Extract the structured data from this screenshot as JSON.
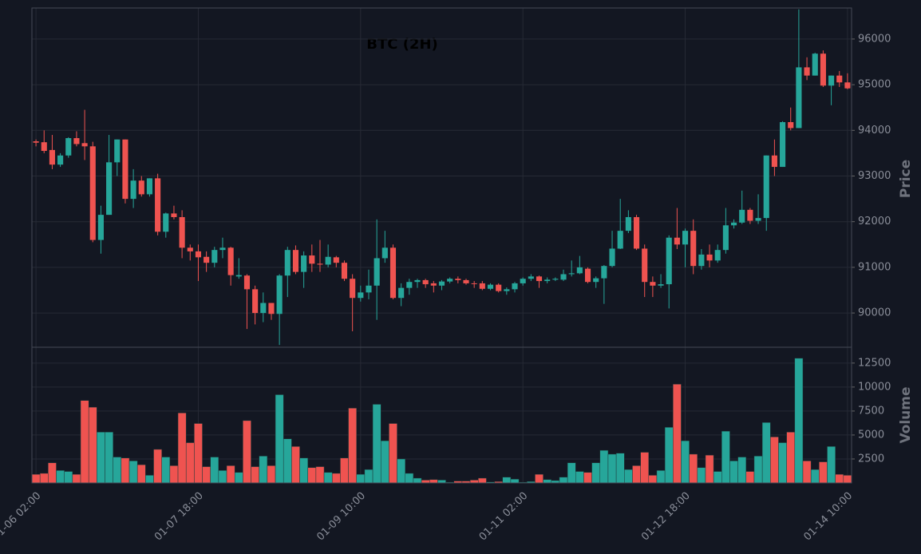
{
  "chart_data": {
    "type": "candlestick",
    "title": "BTC (2H)",
    "x": [
      "01-06 02:00",
      "01-06 04:00",
      "01-06 06:00",
      "01-06 08:00",
      "01-06 10:00",
      "01-06 12:00",
      "01-06 14:00",
      "01-06 16:00",
      "01-06 18:00",
      "01-06 20:00",
      "01-06 22:00",
      "01-07 00:00",
      "01-07 02:00",
      "01-07 04:00",
      "01-07 06:00",
      "01-07 08:00",
      "01-07 10:00",
      "01-07 12:00",
      "01-07 14:00",
      "01-07 16:00",
      "01-07 18:00",
      "01-07 20:00",
      "01-07 22:00",
      "01-08 00:00",
      "01-08 02:00",
      "01-08 04:00",
      "01-08 06:00",
      "01-08 08:00",
      "01-08 10:00",
      "01-08 12:00",
      "01-08 14:00",
      "01-08 16:00",
      "01-08 18:00",
      "01-08 20:00",
      "01-08 22:00",
      "01-09 00:00",
      "01-09 02:00",
      "01-09 04:00",
      "01-09 06:00",
      "01-09 08:00",
      "01-09 10:00",
      "01-09 12:00",
      "01-09 14:00",
      "01-09 16:00",
      "01-09 18:00",
      "01-09 20:00",
      "01-09 22:00",
      "01-10 00:00",
      "01-10 02:00",
      "01-10 04:00",
      "01-10 06:00",
      "01-10 08:00",
      "01-10 10:00",
      "01-10 12:00",
      "01-10 14:00",
      "01-10 16:00",
      "01-10 18:00",
      "01-10 20:00",
      "01-10 22:00",
      "01-11 00:00",
      "01-11 02:00",
      "01-11 04:00",
      "01-11 06:00",
      "01-11 08:00",
      "01-11 10:00",
      "01-11 12:00",
      "01-11 14:00",
      "01-11 16:00",
      "01-11 18:00",
      "01-11 20:00",
      "01-11 22:00",
      "01-12 00:00",
      "01-12 02:00",
      "01-12 04:00",
      "01-12 06:00",
      "01-12 08:00",
      "01-12 10:00",
      "01-12 12:00",
      "01-12 14:00",
      "01-12 16:00",
      "01-12 18:00",
      "01-12 20:00",
      "01-12 22:00",
      "01-13 00:00",
      "01-13 02:00",
      "01-13 04:00",
      "01-13 06:00",
      "01-13 08:00",
      "01-13 10:00",
      "01-13 12:00",
      "01-13 14:00",
      "01-13 16:00",
      "01-13 18:00",
      "01-13 20:00",
      "01-13 22:00",
      "01-14 00:00",
      "01-14 02:00",
      "01-14 04:00",
      "01-14 06:00",
      "01-14 08:00",
      "01-14 10:00"
    ],
    "open": [
      93760,
      93740,
      93570,
      93250,
      93450,
      93830,
      93720,
      93650,
      91600,
      92150,
      93300,
      93800,
      92500,
      92900,
      92600,
      92950,
      91780,
      92180,
      92100,
      91430,
      91350,
      91230,
      91100,
      91380,
      91430,
      90800,
      90820,
      90520,
      90000,
      90220,
      89980,
      90820,
      91380,
      90900,
      91260,
      91080,
      91060,
      91220,
      91100,
      90750,
      90330,
      90450,
      90600,
      91200,
      91430,
      90330,
      90550,
      90680,
      90720,
      90650,
      90600,
      90690,
      90750,
      90720,
      90650,
      90650,
      90530,
      90620,
      90480,
      90520,
      90650,
      90750,
      90800,
      90700,
      90730,
      90730,
      90850,
      90870,
      90970,
      90680,
      90760,
      91030,
      91410,
      91800,
      92100,
      91410,
      90680,
      90600,
      90630,
      91650,
      91500,
      91800,
      91030,
      91280,
      91150,
      91380,
      91920,
      91980,
      92260,
      92020,
      92080,
      93450,
      93200,
      94180,
      94050,
      95380,
      95200,
      95680,
      94980,
      95200,
      95050
    ],
    "high": [
      93800,
      94000,
      93900,
      93500,
      93850,
      93980,
      94450,
      93750,
      92350,
      93900,
      93800,
      93800,
      93150,
      93000,
      92950,
      93050,
      92200,
      92350,
      92250,
      91500,
      91500,
      91350,
      91450,
      91650,
      91450,
      91200,
      90850,
      90600,
      90450,
      90220,
      90850,
      91450,
      91480,
      91350,
      91500,
      91600,
      91500,
      91250,
      91150,
      90850,
      90600,
      90950,
      92050,
      91800,
      91500,
      90650,
      90750,
      90750,
      90750,
      90700,
      90720,
      90780,
      90800,
      90750,
      90700,
      90700,
      90650,
      90650,
      90560,
      90680,
      90780,
      90850,
      90820,
      90780,
      90780,
      90950,
      91150,
      91250,
      91000,
      90800,
      91050,
      91800,
      92500,
      92250,
      92150,
      91500,
      90800,
      90850,
      91700,
      92300,
      91850,
      92050,
      91400,
      91500,
      91500,
      92300,
      92050,
      92680,
      92300,
      92600,
      93450,
      93800,
      94200,
      94500,
      96650,
      95600,
      95700,
      95750,
      95200,
      95300,
      95250
    ],
    "low": [
      93650,
      93500,
      93150,
      93200,
      93400,
      93650,
      93350,
      91550,
      91300,
      92150,
      93000,
      92400,
      92300,
      92550,
      92550,
      91700,
      91650,
      92050,
      91200,
      91150,
      90700,
      90900,
      91000,
      91200,
      90600,
      90750,
      89650,
      89750,
      89800,
      89850,
      89300,
      90350,
      90850,
      90550,
      90900,
      90900,
      91000,
      91000,
      90700,
      89600,
      90250,
      90300,
      89850,
      91100,
      90300,
      90150,
      90400,
      90550,
      90550,
      90450,
      90500,
      90650,
      90650,
      90620,
      90550,
      90500,
      90500,
      90450,
      90400,
      90450,
      90600,
      90700,
      90550,
      90650,
      90700,
      90700,
      90800,
      90850,
      90650,
      90550,
      90200,
      91000,
      91400,
      91750,
      91380,
      90350,
      90350,
      90550,
      90100,
      91400,
      91000,
      90850,
      90950,
      91000,
      91100,
      91300,
      91850,
      91950,
      91950,
      91950,
      91800,
      93000,
      93200,
      94000,
      94050,
      95100,
      95200,
      94950,
      94550,
      94950,
      94900
    ],
    "close": [
      93730,
      93550,
      93250,
      93450,
      93830,
      93700,
      93650,
      91600,
      92150,
      93300,
      93800,
      92500,
      92900,
      92600,
      92950,
      91780,
      92180,
      92100,
      91430,
      91350,
      91220,
      91100,
      91380,
      91430,
      90830,
      90830,
      90520,
      90000,
      90220,
      89980,
      90820,
      91380,
      90900,
      91260,
      91080,
      91060,
      91230,
      91100,
      90750,
      90330,
      90450,
      90600,
      91200,
      91430,
      90330,
      90550,
      90680,
      90720,
      90630,
      90600,
      90690,
      90750,
      90720,
      90650,
      90640,
      90530,
      90620,
      90480,
      90520,
      90650,
      90750,
      90800,
      90700,
      90730,
      90750,
      90850,
      90870,
      91000,
      90680,
      90760,
      91030,
      91410,
      91800,
      92100,
      91410,
      90680,
      90600,
      90630,
      91650,
      91500,
      91800,
      91030,
      91280,
      91150,
      91380,
      91920,
      91980,
      92260,
      92020,
      92080,
      93450,
      93200,
      94180,
      94050,
      95380,
      95200,
      95680,
      94980,
      95200,
      95050,
      94920
    ],
    "volume": [
      900,
      1000,
      2100,
      1300,
      1200,
      900,
      8600,
      7900,
      5300,
      5300,
      2700,
      2600,
      2300,
      1900,
      800,
      3500,
      2700,
      1800,
      7300,
      4200,
      6200,
      1700,
      2700,
      1300,
      1800,
      1100,
      6500,
      1700,
      2800,
      1800,
      9200,
      4600,
      3800,
      2600,
      1600,
      1700,
      1100,
      1000,
      2600,
      7800,
      900,
      1400,
      8200,
      4400,
      6200,
      2500,
      1000,
      500,
      300,
      350,
      300,
      80,
      200,
      200,
      300,
      500,
      100,
      150,
      600,
      400,
      80,
      150,
      900,
      350,
      250,
      600,
      2100,
      1200,
      1100,
      2100,
      3400,
      3000,
      3100,
      1400,
      1800,
      3200,
      800,
      1300,
      5800,
      10300,
      4400,
      3000,
      1600,
      2900,
      1200,
      5400,
      2300,
      2700,
      1200,
      2800,
      6300,
      4800,
      4200,
      5300,
      13000,
      2300,
      1400,
      2200,
      3800,
      900,
      800
    ],
    "up_color": "#26a69a",
    "down_color": "#ef5350",
    "xticks": [
      "01-06 02:00",
      "01-07 18:00",
      "01-09 10:00",
      "01-11 02:00",
      "01-12 18:00",
      "01-14 10:00"
    ],
    "ylabel": "Price",
    "ylim": [
      89250,
      96680
    ],
    "yticks": [
      90000,
      91000,
      92000,
      93000,
      94000,
      95000,
      96000
    ],
    "volume_label": "Volume",
    "volume_ylim": [
      0,
      14150
    ],
    "volume_yticks": [
      2500,
      5000,
      7500,
      10000,
      12500
    ],
    "grid": true
  }
}
